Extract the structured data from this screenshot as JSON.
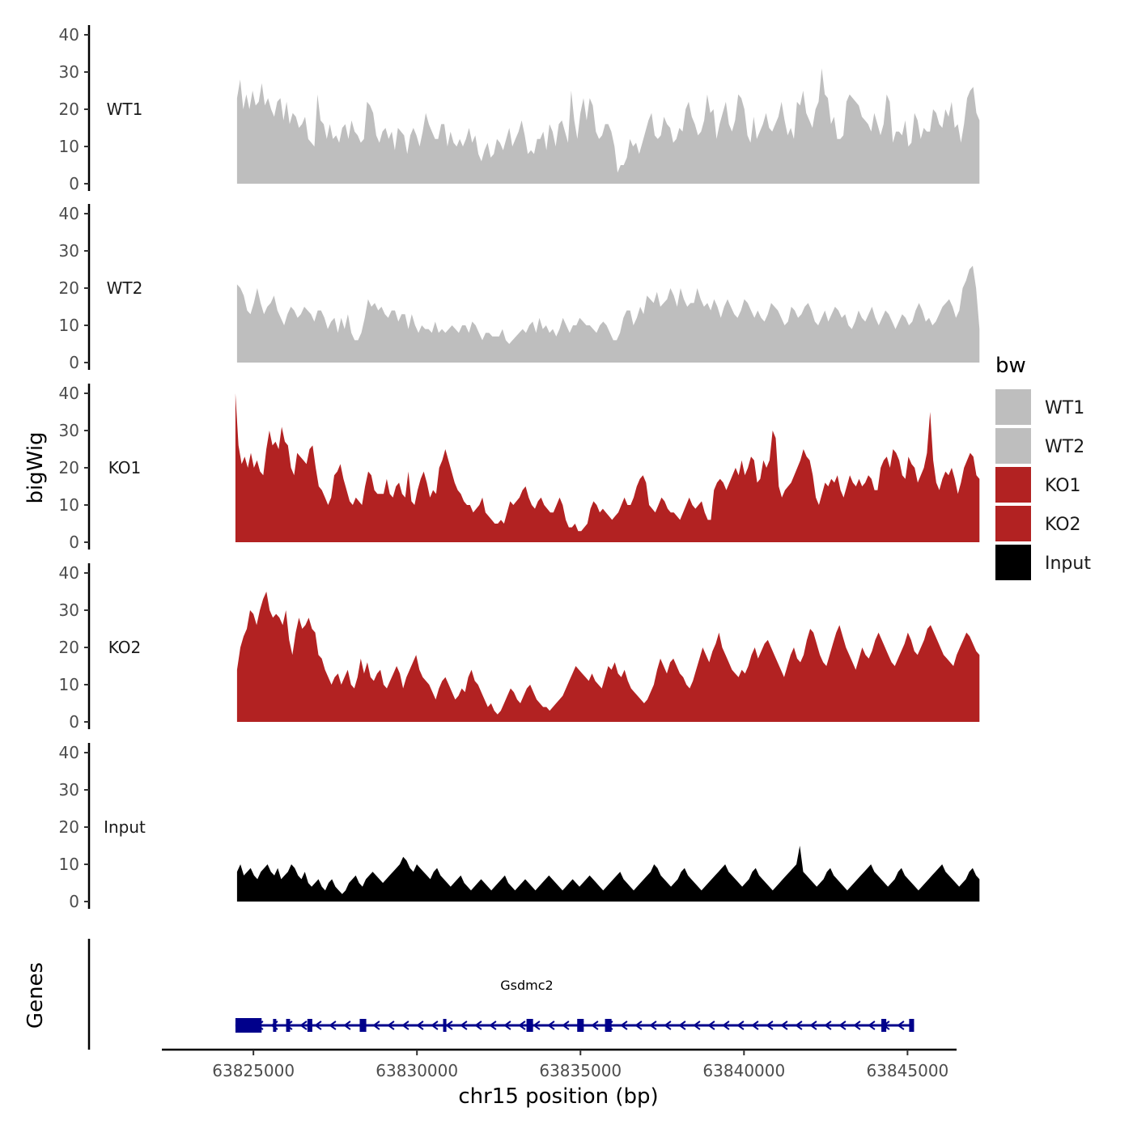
{
  "chart_data": {
    "type": "area",
    "xlabel": "chr15 position (bp)",
    "ylabel": "bigWig",
    "genes_ylabel": "Genes",
    "xlim": [
      63822200,
      63846500
    ],
    "x_ticks": [
      63825000,
      63830000,
      63835000,
      63840000,
      63845000
    ],
    "x_tick_labels": [
      "63825000",
      "63830000",
      "63835000",
      "63840000",
      "63845000"
    ],
    "ylim": [
      0,
      42
    ],
    "y_ticks": [
      0,
      10,
      20,
      30,
      40
    ],
    "y_tick_labels": [
      "0",
      "10",
      "20",
      "30",
      "40"
    ],
    "legend": {
      "title": "bw",
      "entries": [
        {
          "label": "WT1",
          "color": "#bebebe"
        },
        {
          "label": "WT2",
          "color": "#bebebe"
        },
        {
          "label": "KO1",
          "color": "#b22222"
        },
        {
          "label": "KO2",
          "color": "#b22222"
        },
        {
          "label": "Input",
          "color": "#000000"
        }
      ]
    },
    "series": [
      {
        "name": "WT1",
        "color": "#bebebe",
        "x_start": 63824500,
        "x_end": 63847200,
        "values": [
          23,
          28,
          20,
          24,
          20,
          25,
          21,
          22,
          27,
          21,
          23,
          20,
          18,
          22,
          23,
          17,
          22,
          16,
          19,
          18,
          15,
          16,
          18,
          12,
          11,
          10,
          24,
          17,
          16,
          12,
          16,
          12,
          13,
          11,
          15,
          16,
          12,
          17,
          14,
          13,
          11,
          12,
          22,
          21,
          19,
          13,
          11,
          14,
          15,
          12,
          14,
          9,
          15,
          14,
          13,
          8,
          13,
          15,
          13,
          10,
          14,
          19,
          16,
          14,
          12,
          12,
          16,
          16,
          10,
          14,
          11,
          10,
          12,
          10,
          12,
          15,
          11,
          13,
          8,
          6,
          9,
          11,
          7,
          8,
          12,
          11,
          9,
          12,
          15,
          10,
          12,
          14,
          17,
          13,
          8,
          9,
          8,
          12,
          12,
          14,
          9,
          16,
          14,
          10,
          16,
          17,
          14,
          11,
          25,
          17,
          12,
          19,
          23,
          17,
          23,
          21,
          14,
          12,
          13,
          16,
          16,
          14,
          10,
          3,
          5,
          5,
          7,
          12,
          10,
          11,
          8,
          11,
          14,
          17,
          19,
          13,
          12,
          13,
          18,
          16,
          15,
          11,
          12,
          15,
          14,
          20,
          22,
          18,
          16,
          13,
          14,
          17,
          24,
          19,
          20,
          12,
          16,
          19,
          22,
          16,
          14,
          17,
          24,
          23,
          20,
          13,
          11,
          18,
          12,
          14,
          16,
          19,
          15,
          14,
          16,
          18,
          22,
          17,
          13,
          15,
          12,
          22,
          21,
          25,
          19,
          17,
          15,
          20,
          22,
          31,
          24,
          23,
          16,
          18,
          12,
          12,
          13,
          22,
          24,
          23,
          22,
          21,
          18,
          17,
          16,
          14,
          19,
          16,
          13,
          16,
          24,
          22,
          11,
          14,
          14,
          13,
          17,
          10,
          11,
          19,
          17,
          12,
          15,
          14,
          14,
          20,
          19,
          16,
          15,
          20,
          18,
          22,
          15,
          16,
          11,
          16,
          23,
          25,
          26,
          19,
          17
        ]
      },
      {
        "name": "WT2",
        "color": "#bebebe",
        "x_start": 63824500,
        "x_end": 63847200,
        "values": [
          21,
          20,
          18,
          14,
          13,
          16,
          20,
          16,
          13,
          15,
          16,
          18,
          14,
          12,
          10,
          13,
          15,
          14,
          12,
          13,
          15,
          14,
          13,
          11,
          14,
          14,
          12,
          9,
          11,
          12,
          8,
          12,
          9,
          13,
          8,
          6,
          6,
          8,
          12,
          17,
          15,
          16,
          14,
          15,
          13,
          12,
          14,
          14,
          11,
          13,
          13,
          9,
          13,
          10,
          8,
          10,
          9,
          9,
          8,
          11,
          8,
          9,
          8,
          9,
          10,
          9,
          8,
          10,
          10,
          8,
          11,
          10,
          8,
          6,
          8,
          8,
          7,
          7,
          7,
          9,
          6,
          5,
          6,
          7,
          8,
          9,
          8,
          10,
          11,
          8,
          12,
          9,
          10,
          8,
          9,
          7,
          9,
          12,
          10,
          8,
          10,
          10,
          12,
          11,
          10,
          10,
          9,
          8,
          10,
          11,
          10,
          8,
          6,
          6,
          8,
          12,
          14,
          14,
          10,
          12,
          15,
          13,
          18,
          17,
          16,
          19,
          15,
          16,
          17,
          20,
          18,
          15,
          20,
          17,
          15,
          16,
          16,
          20,
          17,
          15,
          16,
          14,
          17,
          15,
          12,
          15,
          17,
          15,
          13,
          12,
          14,
          17,
          16,
          14,
          12,
          14,
          12,
          11,
          13,
          16,
          15,
          14,
          12,
          10,
          11,
          15,
          14,
          12,
          13,
          15,
          16,
          14,
          11,
          10,
          12,
          14,
          11,
          13,
          15,
          14,
          12,
          13,
          10,
          9,
          11,
          14,
          12,
          11,
          13,
          15,
          12,
          10,
          12,
          14,
          13,
          11,
          9,
          11,
          13,
          12,
          10,
          11,
          14,
          16,
          14,
          11,
          12,
          10,
          11,
          13,
          15,
          16,
          17,
          15,
          12,
          14,
          20,
          22,
          25,
          26,
          20,
          9
        ]
      },
      {
        "name": "KO1",
        "color": "#b22222",
        "x_start": 63824450,
        "x_end": 63847200,
        "values": [
          40,
          26,
          21,
          23,
          20,
          24,
          20,
          22,
          19,
          18,
          25,
          30,
          26,
          27,
          25,
          31,
          27,
          26,
          20,
          18,
          24,
          23,
          22,
          21,
          25,
          26,
          20,
          15,
          14,
          12,
          10,
          12,
          18,
          19,
          21,
          17,
          14,
          11,
          10,
          12,
          11,
          10,
          15,
          19,
          18,
          14,
          13,
          13,
          13,
          17,
          13,
          12,
          15,
          16,
          13,
          12,
          19,
          11,
          10,
          14,
          17,
          19,
          16,
          12,
          14,
          13,
          20,
          22,
          25,
          22,
          19,
          16,
          14,
          13,
          11,
          10,
          10,
          8,
          9,
          10,
          12,
          8,
          7,
          6,
          5,
          5,
          6,
          5,
          8,
          11,
          10,
          11,
          12,
          14,
          15,
          12,
          10,
          9,
          11,
          12,
          10,
          9,
          8,
          8,
          10,
          12,
          10,
          6,
          4,
          4,
          5,
          3,
          3,
          4,
          5,
          9,
          11,
          10,
          8,
          9,
          8,
          7,
          6,
          7,
          8,
          10,
          12,
          10,
          10,
          12,
          15,
          17,
          18,
          16,
          10,
          9,
          8,
          10,
          12,
          11,
          9,
          8,
          8,
          7,
          6,
          8,
          10,
          12,
          10,
          9,
          10,
          11,
          8,
          6,
          6,
          14,
          16,
          17,
          16,
          14,
          16,
          18,
          20,
          18,
          22,
          18,
          20,
          23,
          22,
          16,
          17,
          22,
          20,
          22,
          30,
          28,
          15,
          12,
          14,
          15,
          16,
          18,
          20,
          22,
          25,
          23,
          22,
          18,
          12,
          10,
          13,
          16,
          15,
          17,
          16,
          18,
          14,
          12,
          15,
          18,
          16,
          15,
          17,
          15,
          16,
          18,
          17,
          14,
          14,
          20,
          22,
          23,
          20,
          25,
          24,
          22,
          18,
          17,
          23,
          21,
          20,
          16,
          18,
          20,
          24,
          35,
          22,
          16,
          14,
          17,
          19,
          18,
          20,
          17,
          13,
          16,
          20,
          22,
          24,
          23,
          18,
          17
        ]
      },
      {
        "name": "KO2",
        "color": "#b22222",
        "x_start": 63824500,
        "x_end": 63847200,
        "values": [
          14,
          20,
          23,
          25,
          30,
          29,
          26,
          30,
          33,
          35,
          30,
          28,
          29,
          28,
          26,
          30,
          22,
          18,
          24,
          28,
          25,
          26,
          28,
          25,
          24,
          18,
          17,
          14,
          12,
          10,
          12,
          13,
          10,
          12,
          14,
          10,
          9,
          12,
          17,
          13,
          16,
          12,
          11,
          13,
          14,
          10,
          9,
          11,
          13,
          15,
          13,
          9,
          12,
          14,
          16,
          18,
          14,
          12,
          11,
          10,
          8,
          6,
          9,
          11,
          12,
          10,
          8,
          6,
          7,
          9,
          8,
          12,
          14,
          11,
          10,
          8,
          6,
          4,
          5,
          3,
          2,
          3,
          5,
          7,
          9,
          8,
          6,
          5,
          7,
          9,
          10,
          8,
          6,
          5,
          4,
          4,
          3,
          4,
          5,
          6,
          7,
          9,
          11,
          13,
          15,
          14,
          13,
          12,
          11,
          13,
          11,
          10,
          9,
          12,
          15,
          14,
          16,
          13,
          12,
          14,
          11,
          9,
          8,
          7,
          6,
          5,
          6,
          8,
          10,
          14,
          17,
          15,
          13,
          16,
          17,
          15,
          13,
          12,
          10,
          9,
          11,
          14,
          17,
          20,
          18,
          16,
          19,
          21,
          24,
          20,
          18,
          16,
          14,
          13,
          12,
          14,
          13,
          15,
          18,
          20,
          17,
          19,
          21,
          22,
          20,
          18,
          16,
          14,
          12,
          15,
          18,
          20,
          17,
          16,
          18,
          22,
          25,
          24,
          21,
          18,
          16,
          15,
          18,
          21,
          24,
          26,
          23,
          20,
          18,
          16,
          14,
          17,
          20,
          18,
          17,
          19,
          22,
          24,
          22,
          20,
          18,
          16,
          15,
          17,
          19,
          21,
          24,
          22,
          19,
          18,
          20,
          22,
          25,
          26,
          24,
          22,
          20,
          18,
          17,
          16,
          15,
          18,
          20,
          22,
          24,
          23,
          21,
          19,
          18
        ]
      },
      {
        "name": "Input",
        "color": "#000000",
        "x_start": 63824500,
        "x_end": 63847200,
        "values": [
          8,
          10,
          7,
          8,
          9,
          7,
          6,
          8,
          9,
          10,
          8,
          7,
          9,
          6,
          7,
          8,
          10,
          9,
          7,
          6,
          8,
          5,
          4,
          5,
          6,
          4,
          3,
          5,
          6,
          4,
          3,
          2,
          3,
          5,
          6,
          7,
          5,
          4,
          6,
          7,
          8,
          7,
          6,
          5,
          6,
          7,
          8,
          9,
          10,
          12,
          11,
          9,
          8,
          10,
          9,
          8,
          7,
          6,
          8,
          9,
          7,
          6,
          5,
          4,
          5,
          6,
          7,
          5,
          4,
          3,
          4,
          5,
          6,
          5,
          4,
          3,
          4,
          5,
          6,
          7,
          5,
          4,
          3,
          4,
          5,
          6,
          5,
          4,
          3,
          4,
          5,
          6,
          7,
          6,
          5,
          4,
          3,
          4,
          5,
          6,
          5,
          4,
          5,
          6,
          7,
          6,
          5,
          4,
          3,
          4,
          5,
          6,
          7,
          8,
          6,
          5,
          4,
          3,
          4,
          5,
          6,
          7,
          8,
          10,
          9,
          7,
          6,
          5,
          4,
          5,
          6,
          8,
          9,
          7,
          6,
          5,
          4,
          3,
          4,
          5,
          6,
          7,
          8,
          9,
          10,
          8,
          7,
          6,
          5,
          4,
          5,
          6,
          8,
          9,
          7,
          6,
          5,
          4,
          3,
          4,
          5,
          6,
          7,
          8,
          9,
          10,
          15,
          8,
          7,
          6,
          5,
          4,
          5,
          6,
          8,
          9,
          7,
          6,
          5,
          4,
          3,
          4,
          5,
          6,
          7,
          8,
          9,
          10,
          8,
          7,
          6,
          5,
          4,
          5,
          6,
          8,
          9,
          7,
          6,
          5,
          4,
          3,
          4,
          5,
          6,
          7,
          8,
          9,
          10,
          8,
          7,
          6,
          5,
          4,
          5,
          6,
          8,
          9,
          7,
          6
        ]
      }
    ],
    "gene": {
      "name": "Gsdmc2",
      "color": "#00008b",
      "start": 63824450,
      "end": 63845200,
      "strand": "-",
      "exons": [
        [
          63824450,
          63825250
        ],
        [
          63825600,
          63825680
        ],
        [
          63826000,
          63826120
        ],
        [
          63826650,
          63826800
        ],
        [
          63828250,
          63828450
        ],
        [
          63830800,
          63830900
        ],
        [
          63833350,
          63833550
        ],
        [
          63834900,
          63835100
        ],
        [
          63835750,
          63835950
        ],
        [
          63844200,
          63844350
        ],
        [
          63845050,
          63845200
        ]
      ]
    }
  }
}
